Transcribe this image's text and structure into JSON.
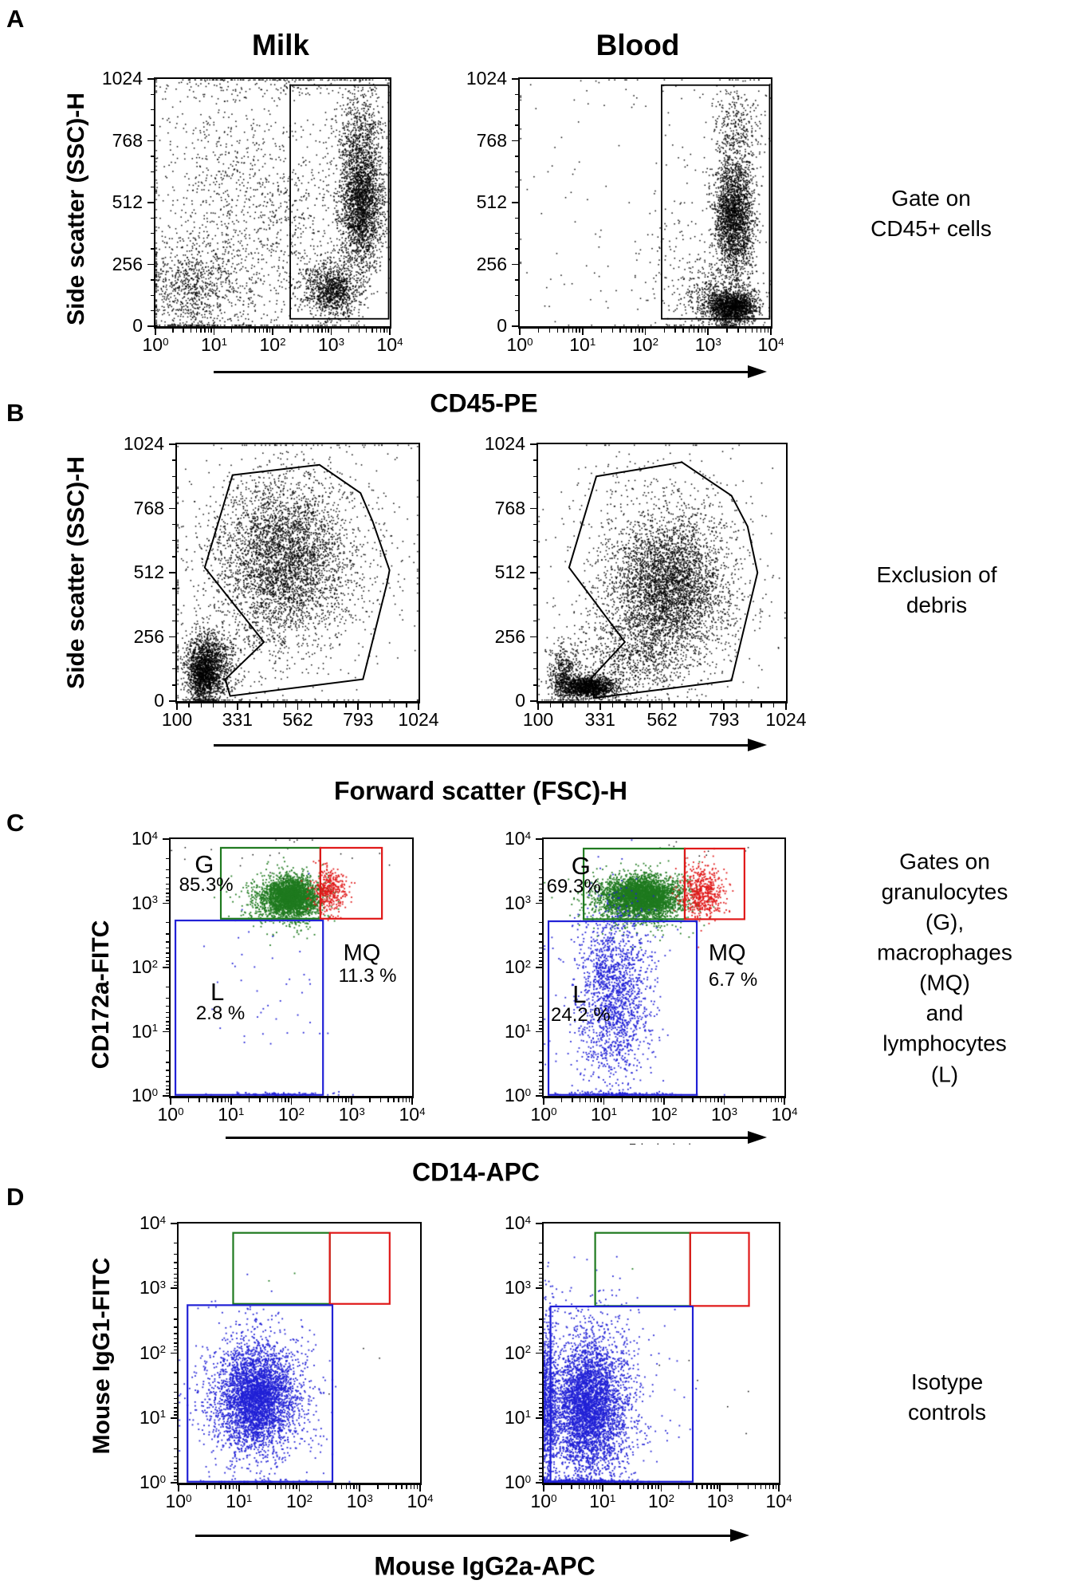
{
  "figure": {
    "artifact": "–· ·  · ·"
  },
  "chart_data": {
    "type": "scatter",
    "note": "Flow cytometry dot-plot figure, 4 panels (A-D) x 2 samples (Milk, Blood). Cluster entries are [n_dots, center_x, center_y, sd_x, sd_y, color] in axis-fraction units (x from left, y from bottom). Gate coordinates are axis fractions.",
    "columns": [
      "Milk",
      "Blood"
    ],
    "colors": {
      "k": "#000000",
      "g": "#1f7a1f",
      "r": "#e01818",
      "b": "#2121d6"
    },
    "panels": [
      {
        "letter": "A",
        "ylabel": "Side scatter (SSC)-H",
        "xlabel": "CD45-PE",
        "annotation": "Gate on CD45+ cells",
        "x_axis": {
          "scale": "log",
          "tick_labels": [
            "10^0",
            "10^1",
            "10^2",
            "10^3",
            "10^4"
          ]
        },
        "y_axis": {
          "scale": "linear",
          "tick_labels": [
            "1024",
            "768",
            "512",
            "256",
            "0"
          ],
          "minors": 3
        },
        "plots": [
          {
            "sample": "Milk",
            "clusters": [
              [
                2600,
                0.88,
                0.5,
                0.045,
                0.135,
                "k"
              ],
              [
                420,
                0.87,
                0.8,
                0.05,
                0.09,
                "k"
              ],
              [
                1100,
                0.755,
                0.145,
                0.055,
                0.055,
                "k"
              ],
              [
                600,
                0.55,
                0.38,
                0.16,
                0.22,
                "k"
              ],
              [
                900,
                0.16,
                0.15,
                0.11,
                0.1,
                "k"
              ],
              [
                500,
                0.26,
                0.55,
                0.14,
                0.26,
                "k"
              ],
              [
                260,
                0.5,
                0.55,
                0.28,
                0.28,
                "k"
              ],
              [
                150,
                0.55,
                0.97,
                0.25,
                0.03,
                "k"
              ]
            ],
            "gates": [
              {
                "shape": "rect",
                "x0": 0.575,
                "y0": 0.03,
                "x1": 0.995,
                "y1": 0.975,
                "c": "k",
                "w": 1.8
              }
            ],
            "labels": []
          },
          {
            "sample": "Blood",
            "clusters": [
              [
                2400,
                0.855,
                0.44,
                0.04,
                0.12,
                "k"
              ],
              [
                380,
                0.865,
                0.78,
                0.05,
                0.1,
                "k"
              ],
              [
                1700,
                0.845,
                0.075,
                0.05,
                0.033,
                "k"
              ],
              [
                420,
                0.78,
                0.14,
                0.08,
                0.06,
                "k"
              ],
              [
                60,
                0.25,
                0.35,
                0.17,
                0.25,
                "k"
              ],
              [
                130,
                0.63,
                0.28,
                0.07,
                0.22,
                "k"
              ],
              [
                40,
                0.5,
                0.95,
                0.25,
                0.04,
                "k"
              ]
            ],
            "gates": [
              {
                "shape": "rect",
                "x0": 0.565,
                "y0": 0.03,
                "x1": 0.995,
                "y1": 0.975,
                "c": "k",
                "w": 1.8
              }
            ],
            "labels": []
          }
        ]
      },
      {
        "letter": "B",
        "ylabel": "Side scatter (SSC)-H",
        "xlabel": "Forward scatter (FSC)-H",
        "annotation": "Exclusion of debris",
        "x_axis": {
          "scale": "linear",
          "tick_labels": [
            "100",
            "331",
            "562",
            "793",
            "1024"
          ],
          "minors": 4
        },
        "y_axis": {
          "scale": "linear",
          "tick_labels": [
            "1024",
            "768",
            "512",
            "256",
            "0"
          ],
          "minors": 3
        },
        "plots": [
          {
            "sample": "Milk",
            "clusters": [
              [
                3200,
                0.44,
                0.55,
                0.13,
                0.15,
                "k"
              ],
              [
                900,
                0.48,
                0.55,
                0.21,
                0.22,
                "k"
              ],
              [
                1500,
                0.135,
                0.135,
                0.05,
                0.07,
                "k"
              ],
              [
                800,
                0.105,
                0.1,
                0.03,
                0.05,
                "k"
              ],
              [
                350,
                0.5,
                0.5,
                0.28,
                0.28,
                "k"
              ]
            ],
            "gates": [
              {
                "shape": "poly",
                "c": "k",
                "w": 2,
                "pts": [
                  [
                    0.23,
                    0.88
                  ],
                  [
                    0.59,
                    0.92
                  ],
                  [
                    0.76,
                    0.81
                  ],
                  [
                    0.81,
                    0.7
                  ],
                  [
                    0.88,
                    0.51
                  ],
                  [
                    0.87,
                    0.46
                  ],
                  [
                    0.77,
                    0.085
                  ],
                  [
                    0.22,
                    0.02
                  ],
                  [
                    0.2,
                    0.085
                  ],
                  [
                    0.36,
                    0.23
                  ],
                  [
                    0.115,
                    0.52
                  ]
                ]
              }
            ],
            "labels": []
          },
          {
            "sample": "Blood",
            "clusters": [
              [
                3600,
                0.52,
                0.44,
                0.12,
                0.13,
                "k"
              ],
              [
                800,
                0.5,
                0.47,
                0.19,
                0.21,
                "k"
              ],
              [
                1500,
                0.2,
                0.055,
                0.055,
                0.022,
                "k"
              ],
              [
                500,
                0.1,
                0.1,
                0.03,
                0.06,
                "k"
              ],
              [
                700,
                0.4,
                0.17,
                0.12,
                0.08,
                "k"
              ],
              [
                150,
                0.5,
                0.8,
                0.2,
                0.1,
                "k"
              ]
            ],
            "gates": [
              {
                "shape": "poly",
                "c": "k",
                "w": 2,
                "pts": [
                  [
                    0.235,
                    0.875
                  ],
                  [
                    0.58,
                    0.93
                  ],
                  [
                    0.78,
                    0.8
                  ],
                  [
                    0.845,
                    0.68
                  ],
                  [
                    0.885,
                    0.5
                  ],
                  [
                    0.78,
                    0.08
                  ],
                  [
                    0.225,
                    0.012
                  ],
                  [
                    0.215,
                    0.09
                  ],
                  [
                    0.35,
                    0.23
                  ],
                  [
                    0.125,
                    0.52
                  ]
                ]
              }
            ],
            "labels": []
          }
        ]
      },
      {
        "letter": "C",
        "ylabel": "CD172a-FITC",
        "xlabel": "CD14-APC",
        "annotation": "Gates on\ngranulocytes (G),\nmacrophages (MQ)\nand lymphocytes (L)",
        "x_axis": {
          "scale": "log",
          "tick_labels": [
            "10^0",
            "10^1",
            "10^2",
            "10^3",
            "10^4"
          ]
        },
        "y_axis": {
          "scale": "log",
          "tick_labels": [
            "10^4",
            "10^3",
            "10^2",
            "10^1",
            "10^0"
          ]
        },
        "plots": [
          {
            "sample": "Milk",
            "clusters": [
              [
                2300,
                0.5,
                0.775,
                0.055,
                0.038,
                "g"
              ],
              [
                600,
                0.46,
                0.76,
                0.09,
                0.055,
                "g"
              ],
              [
                380,
                0.655,
                0.8,
                0.035,
                0.045,
                "r"
              ],
              [
                40,
                0.42,
                0.38,
                0.12,
                0.17,
                "b"
              ],
              [
                90,
                0.45,
                0.006,
                0.12,
                0.004,
                "b"
              ],
              [
                22,
                0.55,
                0.93,
                0.22,
                0.04,
                "k"
              ]
            ],
            "gates": [
              {
                "shape": "rect",
                "x0": 0.208,
                "y0": 0.69,
                "x1": 0.62,
                "y1": 0.966,
                "c": "g",
                "w": 2.2
              },
              {
                "shape": "rect",
                "x0": 0.62,
                "y0": 0.69,
                "x1": 0.875,
                "y1": 0.966,
                "c": "r",
                "w": 2.2
              },
              {
                "shape": "rect",
                "x0": 0.02,
                "y0": 0.004,
                "x1": 0.631,
                "y1": 0.683,
                "c": "b",
                "w": 2.2
              }
            ],
            "labels": [
              {
                "text": "G",
                "fx": 0.1,
                "fy": 0.05,
                "size": 31
              },
              {
                "text": "85.3%",
                "fx": 0.035,
                "fy": 0.142,
                "size": 24
              },
              {
                "text": "MQ",
                "fx": 0.715,
                "fy": 0.4,
                "size": 29
              },
              {
                "text": "11.3 %",
                "fx": 0.695,
                "fy": 0.497,
                "size": 24
              },
              {
                "text": "L",
                "fx": 0.165,
                "fy": 0.548,
                "size": 31
              },
              {
                "text": "2.8 %",
                "fx": 0.105,
                "fy": 0.642,
                "size": 24
              }
            ]
          },
          {
            "sample": "Blood",
            "clusters": [
              [
                3200,
                0.41,
                0.775,
                0.075,
                0.038,
                "g"
              ],
              [
                800,
                0.38,
                0.76,
                0.115,
                0.055,
                "g"
              ],
              [
                560,
                0.66,
                0.79,
                0.045,
                0.05,
                "r"
              ],
              [
                1400,
                0.3,
                0.4,
                0.07,
                0.16,
                "b"
              ],
              [
                350,
                0.285,
                0.35,
                0.11,
                0.22,
                "b"
              ],
              [
                130,
                0.33,
                0.006,
                0.12,
                0.004,
                "b"
              ],
              [
                10,
                0.6,
                0.95,
                0.2,
                0.03,
                "k"
              ]
            ],
            "gates": [
              {
                "shape": "rect",
                "x0": 0.166,
                "y0": 0.688,
                "x1": 0.586,
                "y1": 0.963,
                "c": "g",
                "w": 2.2
              },
              {
                "shape": "rect",
                "x0": 0.586,
                "y0": 0.688,
                "x1": 0.834,
                "y1": 0.963,
                "c": "r",
                "w": 2.2
              },
              {
                "shape": "rect",
                "x0": 0.02,
                "y0": 0.004,
                "x1": 0.636,
                "y1": 0.68,
                "c": "b",
                "w": 2.2
              }
            ],
            "labels": [
              {
                "text": "G",
                "fx": 0.115,
                "fy": 0.055,
                "size": 31
              },
              {
                "text": "69.3%",
                "fx": 0.012,
                "fy": 0.15,
                "size": 24
              },
              {
                "text": "MQ",
                "fx": 0.685,
                "fy": 0.402,
                "size": 29
              },
              {
                "text": "6.7 %",
                "fx": 0.685,
                "fy": 0.512,
                "size": 24
              },
              {
                "text": "L",
                "fx": 0.12,
                "fy": 0.556,
                "size": 31
              },
              {
                "text": "24.2 %",
                "fx": 0.03,
                "fy": 0.648,
                "size": 24
              }
            ]
          }
        ]
      },
      {
        "letter": "D",
        "ylabel": "Mouse IgG1-FITC",
        "xlabel": "Mouse IgG2a-APC",
        "annotation": "Isotype controls",
        "x_axis": {
          "scale": "log",
          "tick_labels": [
            "10^0",
            "10^1",
            "10^2",
            "10^3",
            "10^4"
          ]
        },
        "y_axis": {
          "scale": "log",
          "tick_labels": [
            "10^4",
            "10^3",
            "10^2",
            "10^1",
            "10^0"
          ]
        },
        "plots": [
          {
            "sample": "Milk",
            "clusters": [
              [
                3200,
                0.32,
                0.32,
                0.075,
                0.095,
                "b"
              ],
              [
                900,
                0.33,
                0.34,
                0.125,
                0.155,
                "b"
              ],
              [
                30,
                0.33,
                0.008,
                0.12,
                0.005,
                "b"
              ],
              [
                2,
                0.44,
                0.8,
                0.04,
                0.04,
                "g"
              ],
              [
                3,
                0.72,
                0.45,
                0.1,
                0.12,
                "k"
              ]
            ],
            "gates": [
              {
                "shape": "rect",
                "x0": 0.226,
                "y0": 0.69,
                "x1": 0.626,
                "y1": 0.964,
                "c": "g",
                "w": 2.2
              },
              {
                "shape": "rect",
                "x0": 0.626,
                "y0": 0.69,
                "x1": 0.874,
                "y1": 0.964,
                "c": "r",
                "w": 2.2
              },
              {
                "shape": "rect",
                "x0": 0.037,
                "y0": 0.004,
                "x1": 0.637,
                "y1": 0.685,
                "c": "b",
                "w": 2.2
              }
            ],
            "labels": []
          },
          {
            "sample": "Blood",
            "clusters": [
              [
                3600,
                0.19,
                0.29,
                0.075,
                0.125,
                "b"
              ],
              [
                900,
                0.22,
                0.32,
                0.12,
                0.19,
                "b"
              ],
              [
                700,
                0.022,
                0.3,
                0.018,
                0.16,
                "b"
              ],
              [
                220,
                0.16,
                0.006,
                0.1,
                0.004,
                "b"
              ],
              [
                6,
                0.72,
                0.33,
                0.12,
                0.18,
                "k"
              ],
              [
                1,
                0.38,
                0.82,
                0.005,
                0.005,
                "g"
              ]
            ],
            "gates": [
              {
                "shape": "rect",
                "x0": 0.219,
                "y0": 0.682,
                "x1": 0.623,
                "y1": 0.964,
                "c": "g",
                "w": 2.2
              },
              {
                "shape": "rect",
                "x0": 0.623,
                "y0": 0.682,
                "x1": 0.873,
                "y1": 0.964,
                "c": "r",
                "w": 2.2
              },
              {
                "shape": "rect",
                "x0": 0.029,
                "y0": 0.004,
                "x1": 0.634,
                "y1": 0.68,
                "c": "b",
                "w": 2.2
              }
            ],
            "labels": []
          }
        ]
      }
    ]
  }
}
